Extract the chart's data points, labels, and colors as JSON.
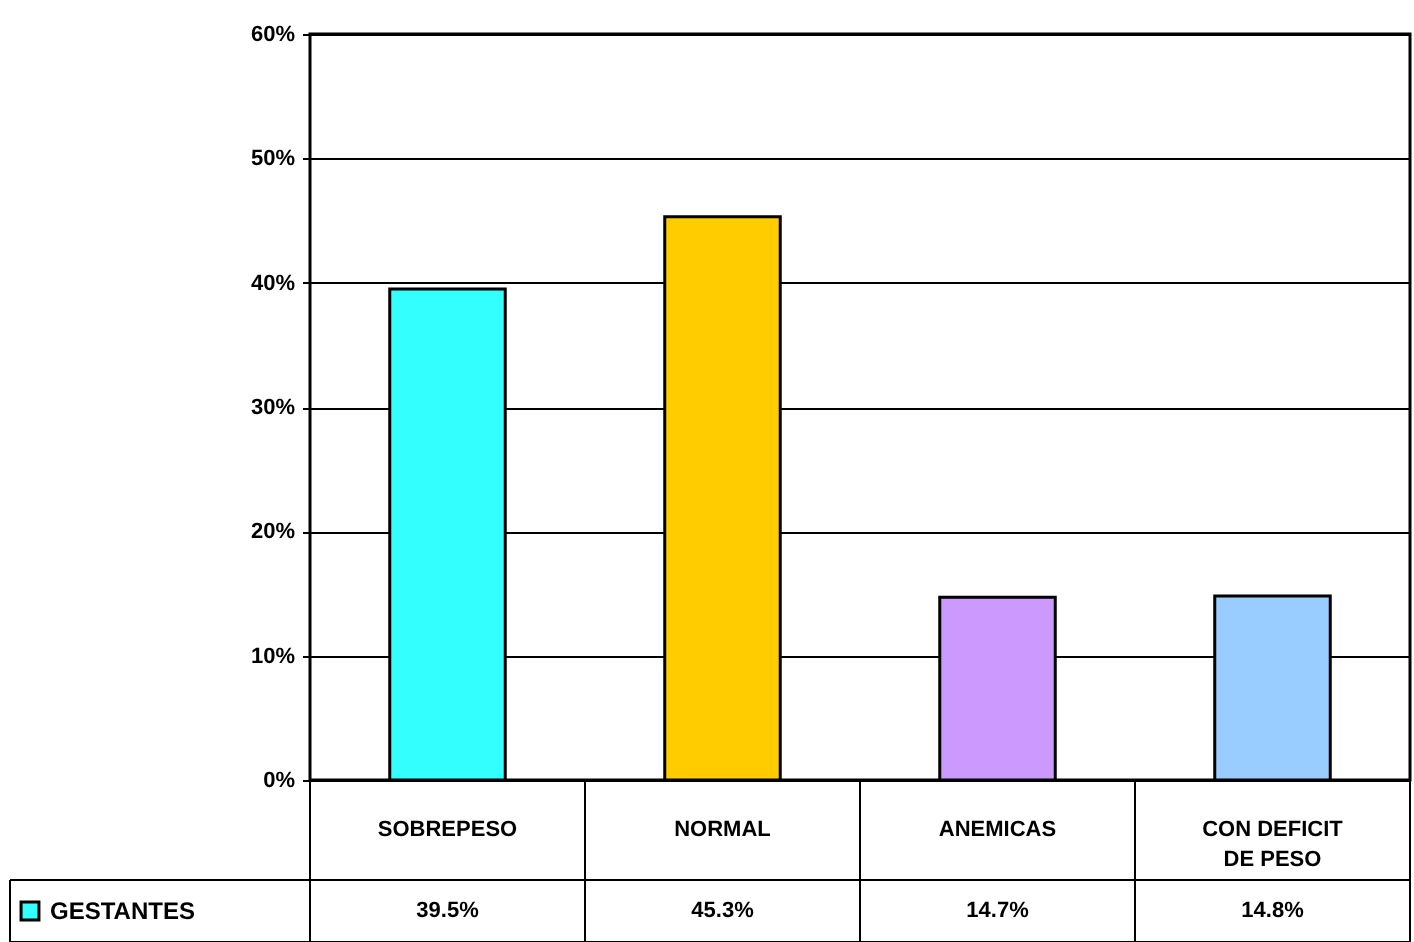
{
  "chart_data": {
    "type": "bar",
    "categories": [
      "SOBREPESO",
      "NORMAL",
      "ANEMICAS",
      "CON DEFICIT DE PESO"
    ],
    "series": [
      {
        "name": "GESTANTES",
        "color": "#33ffff",
        "colors": [
          "#33ffff",
          "#ffcc00",
          "#cc99ff",
          "#99ccff"
        ],
        "values": [
          39.5,
          45.3,
          14.7,
          14.8
        ],
        "value_labels": [
          "39.5%",
          "45.3%",
          "14.7%",
          "14.8%"
        ]
      }
    ],
    "ylim": [
      0,
      60
    ],
    "yticks": [
      {
        "value": 0,
        "label": "0%"
      },
      {
        "value": 10,
        "label": "10%"
      },
      {
        "value": 20,
        "label": "20%"
      },
      {
        "value": 30,
        "label": "30%"
      },
      {
        "value": 40,
        "label": "40%"
      },
      {
        "value": 50,
        "label": "50%"
      },
      {
        "value": 60,
        "label": "60%"
      }
    ],
    "grid": "y",
    "legend": "bottom left"
  }
}
